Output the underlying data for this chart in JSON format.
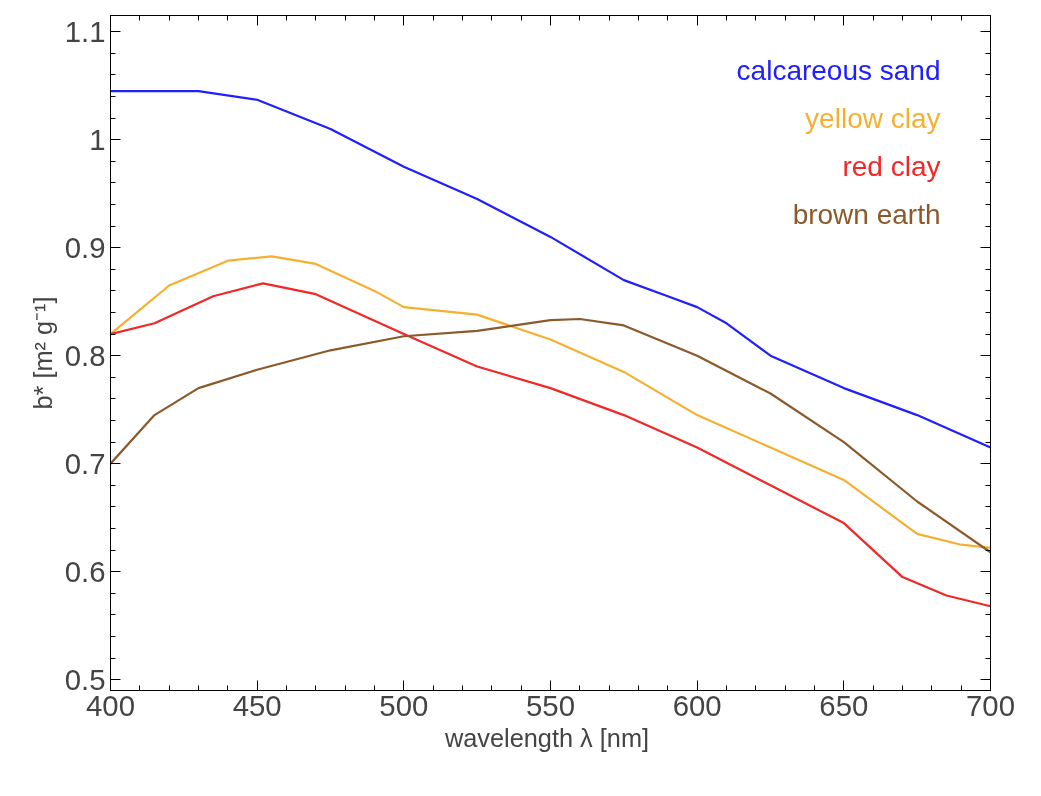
{
  "chart_data": {
    "type": "line",
    "xlabel": "wavelength λ  [nm]",
    "ylabel": "b* [m² g⁻¹]",
    "xlim": [
      400,
      700
    ],
    "ylim": [
      0.49,
      1.115
    ],
    "xticks": [
      400,
      450,
      500,
      550,
      600,
      650,
      700
    ],
    "yticks": [
      0.5,
      0.6,
      0.7,
      0.8,
      0.9,
      1.0,
      1.1
    ],
    "grid": false,
    "legend": "top right",
    "line_style": "solid",
    "marker": "none",
    "series": [
      {
        "name": "calcareous sand",
        "color": "#2020ff",
        "x": [
          400,
          430,
          450,
          475,
          500,
          525,
          550,
          575,
          590,
          600,
          610,
          625,
          650,
          675,
          700
        ],
        "values": [
          1.045,
          1.045,
          1.037,
          1.01,
          0.975,
          0.945,
          0.91,
          0.87,
          0.855,
          0.845,
          0.83,
          0.8,
          0.77,
          0.745,
          0.715
        ]
      },
      {
        "name": "yellow clay",
        "color": "#f5b031",
        "x": [
          400,
          420,
          440,
          455,
          470,
          490,
          500,
          525,
          550,
          575,
          600,
          625,
          650,
          675,
          690,
          700
        ],
        "values": [
          0.82,
          0.865,
          0.888,
          0.892,
          0.885,
          0.86,
          0.845,
          0.838,
          0.815,
          0.785,
          0.745,
          0.715,
          0.685,
          0.635,
          0.625,
          0.622
        ]
      },
      {
        "name": "red clay",
        "color": "#f02828",
        "x": [
          400,
          415,
          435,
          452,
          470,
          500,
          525,
          550,
          575,
          600,
          625,
          650,
          670,
          685,
          700
        ],
        "values": [
          0.82,
          0.83,
          0.855,
          0.867,
          0.857,
          0.82,
          0.79,
          0.77,
          0.745,
          0.715,
          0.68,
          0.645,
          0.595,
          0.578,
          0.568
        ]
      },
      {
        "name": "brown earth",
        "color": "#8b5a2b",
        "x": [
          400,
          415,
          430,
          450,
          475,
          500,
          525,
          550,
          560,
          575,
          600,
          625,
          650,
          675,
          700
        ],
        "values": [
          0.7,
          0.745,
          0.77,
          0.787,
          0.805,
          0.818,
          0.823,
          0.833,
          0.834,
          0.828,
          0.8,
          0.765,
          0.72,
          0.665,
          0.618
        ]
      }
    ]
  }
}
